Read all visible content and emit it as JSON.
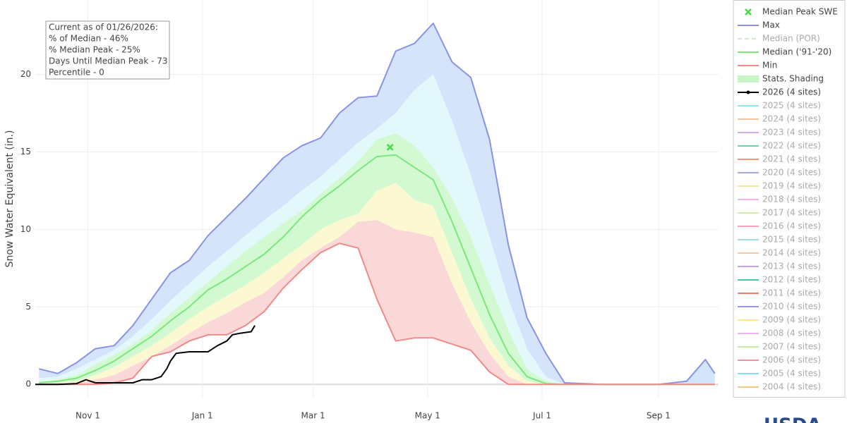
{
  "chart_data": {
    "type": "line",
    "y_label": "Snow Water Equivalent (in.)",
    "xlim": [
      3,
      367
    ],
    "ylim": [
      -0.9,
      24.8
    ],
    "xticks": [
      {
        "value": 31,
        "label": "Nov 1"
      },
      {
        "value": 92,
        "label": "Jan 1"
      },
      {
        "value": 151,
        "label": "Mar 1"
      },
      {
        "value": 212,
        "label": "May 1"
      },
      {
        "value": 273,
        "label": "Jul 1"
      },
      {
        "value": 335,
        "label": "Sep 1"
      }
    ],
    "yticks": [
      0,
      5,
      10,
      15,
      20
    ],
    "grid": true,
    "legend": "right",
    "annotation": [
      "Current as of 01/26/2026:",
      "% of Median - 46%",
      "% Median Peak - 25%",
      "Days Until Median Peak - 73",
      "Percentile - 0"
    ],
    "x": [
      5,
      15,
      25,
      35,
      45,
      55,
      65,
      75,
      85,
      95,
      105,
      115,
      125,
      135,
      145,
      155,
      165,
      175,
      185,
      195,
      205,
      215,
      225,
      235,
      245,
      255,
      265,
      275,
      285,
      305,
      335,
      350,
      360,
      365
    ],
    "series": [
      {
        "name": "Max",
        "color": "#8a92e8",
        "values": [
          1.0,
          0.7,
          1.4,
          2.3,
          2.5,
          3.8,
          5.5,
          7.2,
          8.0,
          9.6,
          10.8,
          12.0,
          13.3,
          14.6,
          15.4,
          15.9,
          17.5,
          18.5,
          18.6,
          21.5,
          22.0,
          23.3,
          20.8,
          19.8,
          15.8,
          9.0,
          4.3,
          2.0,
          0.1,
          0,
          0,
          0.2,
          1.6,
          0.7
        ]
      },
      {
        "name": "Median ('91-'20)",
        "color": "#7be87b",
        "values": [
          0.1,
          0.2,
          0.4,
          0.9,
          1.5,
          2.3,
          3.1,
          4.1,
          5.0,
          6.1,
          6.8,
          7.6,
          8.4,
          9.5,
          10.8,
          11.9,
          12.8,
          13.8,
          14.7,
          14.8,
          14.0,
          13.2,
          10.5,
          7.5,
          4.5,
          2.0,
          0.5,
          0.05,
          0,
          0,
          0,
          0,
          0,
          0
        ]
      },
      {
        "name": "Min",
        "color": "#f08a8a",
        "values": [
          0,
          0,
          0,
          0,
          0.1,
          0.4,
          1.8,
          2.1,
          2.8,
          3.2,
          3.2,
          3.8,
          4.7,
          6.2,
          7.4,
          8.5,
          9.1,
          8.8,
          5.5,
          2.8,
          3.0,
          3.0,
          2.6,
          2.2,
          0.8,
          0,
          0,
          0,
          0,
          0,
          0,
          0,
          0,
          0
        ]
      },
      {
        "name": "2026 (4 sites)",
        "color": "#000000",
        "x": [
          3,
          15,
          25,
          30,
          35,
          45,
          55,
          60,
          65,
          70,
          73,
          75,
          78,
          85,
          95,
          100,
          105,
          108,
          112,
          118,
          120
        ],
        "values": [
          0,
          0,
          0.05,
          0.3,
          0.1,
          0.1,
          0.1,
          0.3,
          0.3,
          0.5,
          1.0,
          1.5,
          2.0,
          2.1,
          2.1,
          2.5,
          2.8,
          3.2,
          3.3,
          3.4,
          3.8
        ]
      }
    ],
    "shading": {
      "name": "Stats. Shading",
      "color": "#c8f5c8",
      "band_colors": [
        "#d6e4fb",
        "#e3f8fb",
        "#d3f9d3",
        "#fbf8d2",
        "#fbd8d8"
      ],
      "bounds": [
        [
          0.4,
          0.5,
          1.0,
          1.6,
          2.2,
          3.1,
          4.2,
          5.4,
          6.5,
          7.6,
          8.6,
          9.6,
          10.6,
          11.5,
          12.5,
          13.4,
          14.5,
          15.6,
          16.5,
          17.5,
          19.0,
          20.0,
          17.0,
          13.5,
          9.5,
          5.5,
          2.3,
          0.5,
          0,
          0,
          0,
          0,
          0,
          0
        ],
        [
          0.2,
          0.3,
          0.6,
          1.3,
          1.9,
          2.6,
          3.5,
          4.6,
          5.6,
          6.6,
          7.6,
          8.6,
          9.5,
          10.4,
          11.2,
          12.3,
          13.3,
          14.4,
          15.8,
          16.2,
          15.4,
          14.0,
          12.0,
          9.5,
          6.5,
          3.5,
          1.0,
          0.2,
          0,
          0,
          0,
          0,
          0,
          0
        ],
        [
          0.05,
          0.1,
          0.2,
          0.6,
          1.1,
          1.8,
          2.5,
          3.3,
          4.2,
          5.0,
          5.7,
          6.4,
          7.2,
          8.1,
          9.0,
          10.0,
          10.6,
          11.0,
          12.5,
          13.0,
          11.9,
          11.5,
          8.5,
          5.5,
          3.0,
          1.2,
          0.2,
          0,
          0,
          0,
          0,
          0,
          0,
          0
        ],
        [
          0,
          0,
          0.05,
          0.3,
          0.6,
          1.2,
          1.8,
          2.5,
          3.3,
          4.0,
          4.6,
          5.3,
          5.9,
          6.9,
          8.0,
          8.8,
          9.5,
          10.5,
          10.6,
          10.0,
          9.8,
          9.5,
          6.5,
          4.0,
          2.0,
          0.5,
          0,
          0,
          0,
          0,
          0,
          0,
          0,
          0
        ]
      ]
    },
    "peak": {
      "name": "Median Peak SWE",
      "color": "#44dd44",
      "x": 192,
      "value": 15.3
    },
    "legend_only": [
      {
        "name": "Median (POR)",
        "color": "#cfe8cf"
      },
      {
        "name": "2025 (4 sites)",
        "color": "#8ee8f0"
      },
      {
        "name": "2024 (4 sites)",
        "color": "#f7c59f"
      },
      {
        "name": "2023 (4 sites)",
        "color": "#d8a8f0"
      },
      {
        "name": "2022 (4 sites)",
        "color": "#5fd6b0"
      },
      {
        "name": "2021 (4 sites)",
        "color": "#f0947a"
      },
      {
        "name": "2020 (4 sites)",
        "color": "#a8a8e0"
      },
      {
        "name": "2019 (4 sites)",
        "color": "#f7e49a"
      },
      {
        "name": "2018 (4 sites)",
        "color": "#f5b3e8"
      },
      {
        "name": "2017 (4 sites)",
        "color": "#cdeeb0"
      },
      {
        "name": "2016 (4 sites)",
        "color": "#f5a3b8"
      },
      {
        "name": "2015 (4 sites)",
        "color": "#9ee0e8"
      },
      {
        "name": "2014 (4 sites)",
        "color": "#f8c8a0"
      },
      {
        "name": "2013 (4 sites)",
        "color": "#c8a0f0"
      },
      {
        "name": "2012 (4 sites)",
        "color": "#40d0a0"
      },
      {
        "name": "2011 (4 sites)",
        "color": "#f08070"
      },
      {
        "name": "2010 (4 sites)",
        "color": "#9898e8"
      },
      {
        "name": "2009 (4 sites)",
        "color": "#f8e890"
      },
      {
        "name": "2008 (4 sites)",
        "color": "#f0b0f0"
      },
      {
        "name": "2007 (4 sites)",
        "color": "#c0f0a0"
      },
      {
        "name": "2006 (4 sites)",
        "color": "#f090a8"
      },
      {
        "name": "2005 (4 sites)",
        "color": "#80e0f8"
      },
      {
        "name": "2004 (4 sites)",
        "color": "#f8c890"
      }
    ],
    "logo": "USDA"
  }
}
